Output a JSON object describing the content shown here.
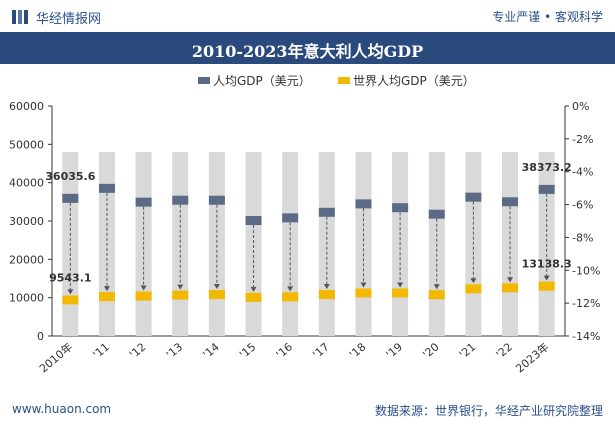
{
  "header": {
    "brand": "华经情报网",
    "tagline": "专业严谨 • 客观科学"
  },
  "footer": {
    "website": "www.huaon.com",
    "source": "数据来源：世界银行，华经产业研究院整理"
  },
  "colors": {
    "header_band": "#2a4a7e",
    "series_china": "#5b6b86",
    "series_world": "#f3b800",
    "background_column": "#d9d9d9",
    "text": "#2a4f8d"
  },
  "chart_data": {
    "type": "bar",
    "title": "2010-2023年意大利人均GDP",
    "categories": [
      "2010年",
      "'11",
      "'12",
      "'13",
      "'14",
      "'15",
      "'16",
      "'17",
      "'18",
      "'19",
      "'20",
      "'21",
      "'22",
      "2023年"
    ],
    "series": [
      {
        "name": "人均GDP（美元）",
        "values": [
          36035.6,
          38650,
          35050,
          35550,
          35550,
          30250,
          30950,
          32400,
          34600,
          33600,
          31900,
          36350,
          35150,
          38373.2
        ]
      },
      {
        "name": "世界人均GDP（美元）",
        "values": [
          9543.1,
          10400,
          10550,
          10800,
          10950,
          10200,
          10350,
          10950,
          11350,
          11350,
          10900,
          12450,
          12700,
          13138.3
        ]
      }
    ],
    "data_labels": [
      "36035.6",
      "38373.2",
      "9543.1",
      "13138.3"
    ],
    "y_left": {
      "min": 0,
      "max": 60000,
      "ticks": [
        0,
        10000,
        20000,
        30000,
        40000,
        50000,
        60000
      ],
      "labels": [
        "0",
        "10000",
        "20000",
        "30000",
        "40000",
        "50000",
        "60000"
      ]
    },
    "y_right": {
      "ticks": [
        0,
        -2,
        -4,
        -6,
        -8,
        -10,
        -12,
        -14
      ],
      "labels": [
        "0%",
        "-2%",
        "-4%",
        "-6%",
        "-8%",
        "-10%",
        "-12%",
        "-14%"
      ]
    },
    "legend_position": "top-center",
    "grid": false,
    "xlabel": "",
    "ylabel": ""
  }
}
